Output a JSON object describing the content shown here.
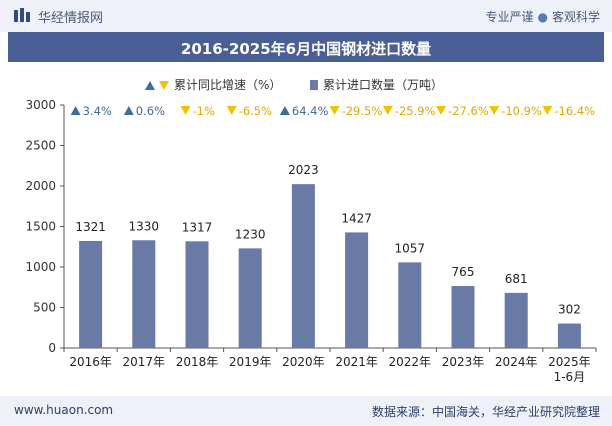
{
  "brand": {
    "name": "华经情报网"
  },
  "header_right": {
    "tag1": "专业严谨",
    "tag2": "客观科学"
  },
  "footer": {
    "website": "www.huaon.com",
    "source": "数据来源：中国海关，华经产业研究院整理"
  },
  "colors": {
    "bar": "#6a7aa6",
    "up": "#3f6d9a",
    "down": "#f2c200",
    "title_bg": "#4a5f95"
  },
  "chart_data": {
    "type": "bar",
    "title": "2016-2025年6月中国钢材进口数量",
    "legend": {
      "growth_label": "累计同比增速（%）",
      "volume_label": "累计进口数量（万吨）",
      "placement": "top-center"
    },
    "categories": [
      "2016年",
      "2017年",
      "2018年",
      "2019年",
      "2020年",
      "2021年",
      "2022年",
      "2023年",
      "2024年",
      "2025年\n1-6月"
    ],
    "series": [
      {
        "name": "累计进口数量（万吨）",
        "values": [
          1321,
          1330,
          1317,
          1230,
          2023,
          1427,
          1057,
          765,
          681,
          302
        ]
      },
      {
        "name": "累计同比增速（%）",
        "values": [
          3.4,
          0.6,
          -1,
          -6.5,
          64.4,
          -29.5,
          -25.9,
          -27.6,
          -10.9,
          -16.4
        ]
      }
    ],
    "growth_labels": [
      "3.4%",
      "0.6%",
      "-1%",
      "-6.5%",
      "64.4%",
      "-29.5%",
      "-25.9%",
      "-27.6%",
      "-10.9%",
      "-16.4%"
    ],
    "ylim": [
      0,
      3000
    ],
    "yticks": [
      0,
      500,
      1000,
      1500,
      2000,
      2500,
      3000
    ],
    "xlabel": "",
    "ylabel": ""
  }
}
